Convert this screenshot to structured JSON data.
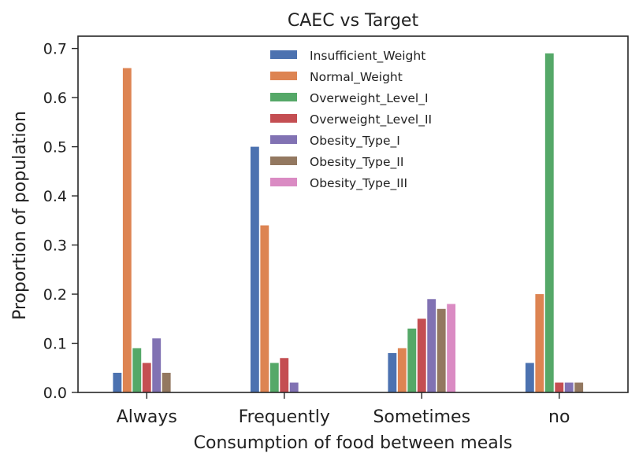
{
  "chart_data": {
    "type": "bar",
    "title": "CAEC vs Target",
    "xlabel": "Consumption of food between meals",
    "ylabel": "Proportion of population",
    "categories": [
      "Always",
      "Frequently",
      "Sometimes",
      "no"
    ],
    "ylim": [
      0,
      0.725
    ],
    "yticks": [
      0.0,
      0.1,
      0.2,
      0.3,
      0.4,
      0.5,
      0.6,
      0.7
    ],
    "ytick_labels": [
      "0.0",
      "0.1",
      "0.2",
      "0.3",
      "0.4",
      "0.5",
      "0.6",
      "0.7"
    ],
    "grid": false,
    "legend_position": "top-center",
    "series": [
      {
        "name": "Insufficient_Weight",
        "color": "#4c72b0",
        "values": [
          0.04,
          0.5,
          0.08,
          0.06
        ]
      },
      {
        "name": "Normal_Weight",
        "color": "#dd8452",
        "values": [
          0.66,
          0.34,
          0.09,
          0.2
        ]
      },
      {
        "name": "Overweight_Level_I",
        "color": "#55a868",
        "values": [
          0.09,
          0.06,
          0.13,
          0.69
        ]
      },
      {
        "name": "Overweight_Level_II",
        "color": "#c44e52",
        "values": [
          0.06,
          0.07,
          0.15,
          0.02
        ]
      },
      {
        "name": "Obesity_Type_I",
        "color": "#8172b3",
        "values": [
          0.11,
          0.02,
          0.19,
          0.02
        ]
      },
      {
        "name": "Obesity_Type_II",
        "color": "#937860",
        "values": [
          0.04,
          0.0,
          0.17,
          0.02
        ]
      },
      {
        "name": "Obesity_Type_III",
        "color": "#da8bc3",
        "values": [
          0.0,
          0.0,
          0.18,
          0.0
        ]
      }
    ]
  }
}
